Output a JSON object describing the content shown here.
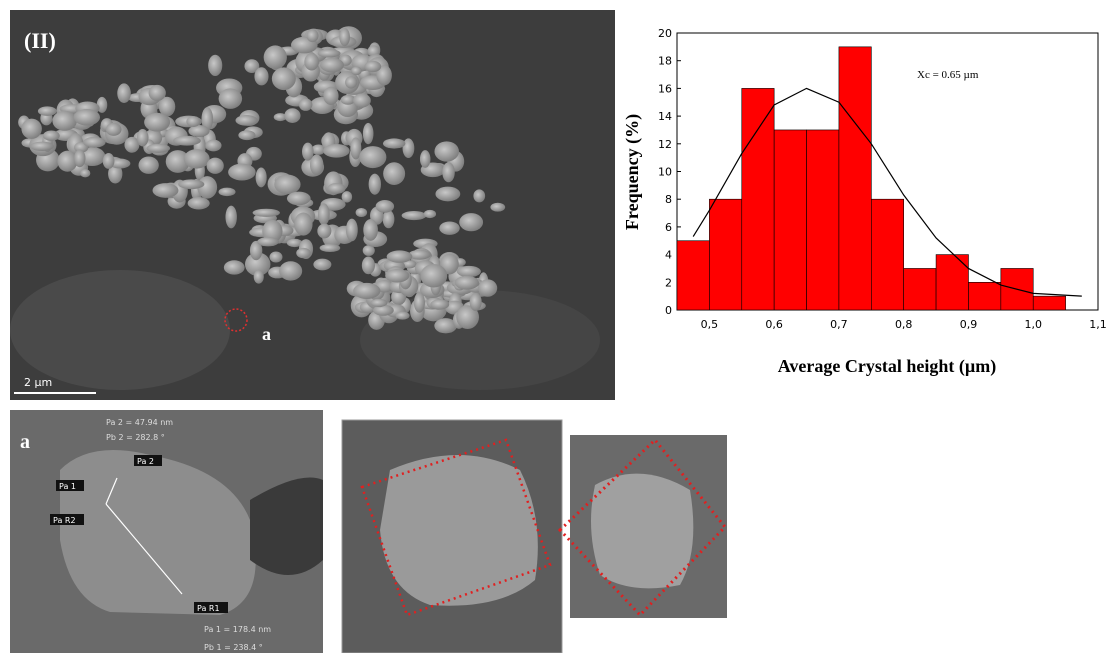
{
  "chart_data": {
    "type": "histogram",
    "ylabel": "Frequency (%)",
    "xlabel": "Average Crystal height (µm)",
    "annotation": "Xc = 0.65 µm",
    "bins": [
      0.45,
      0.5,
      0.55,
      0.6,
      0.65,
      0.7,
      0.75,
      0.8,
      0.85,
      0.9,
      0.95,
      1.0,
      1.05
    ],
    "values": [
      5,
      8,
      16,
      13,
      13,
      19,
      8,
      3,
      4,
      2,
      3,
      1
    ],
    "color": "#ff0000",
    "fit": {
      "color": "#000000",
      "x": [
        0.475,
        0.5,
        0.55,
        0.6,
        0.65,
        0.7,
        0.75,
        0.8,
        0.85,
        0.9,
        0.95,
        1.0,
        1.075
      ],
      "y": [
        5.3,
        7.2,
        11.3,
        14.8,
        16,
        15,
        12,
        8.3,
        5.2,
        3,
        1.8,
        1.2,
        1
      ]
    },
    "xlim": [
      0.45,
      1.1
    ],
    "xticks": [
      {
        "value": 0.5,
        "label": "0,5"
      },
      {
        "value": 0.6,
        "label": "0,6"
      },
      {
        "value": 0.7,
        "label": "0,7"
      },
      {
        "value": 0.8,
        "label": "0,8"
      },
      {
        "value": 0.9,
        "label": "0,9"
      },
      {
        "value": 1.0,
        "label": "1,0"
      },
      {
        "value": 1.1,
        "label": "1,1"
      }
    ],
    "ylim": [
      0,
      20
    ],
    "yticks": [
      0,
      2,
      4,
      6,
      8,
      10,
      12,
      14,
      16,
      18,
      20
    ]
  },
  "panels": {
    "sem": {
      "label": "(II)",
      "marker": "a",
      "scale": "2 µm"
    },
    "zoom": {
      "label": "a",
      "pa2": "Pa 2 = 47.94 nm",
      "pb2": "Pb 2 = 282.8 °",
      "tags": [
        "Pa 2",
        "Pa 1",
        "Pa R2",
        "Pa R1"
      ],
      "pa1": "Pa 1 = 178.4 nm",
      "pb1": "Pb 1 = 238.4 °"
    }
  }
}
